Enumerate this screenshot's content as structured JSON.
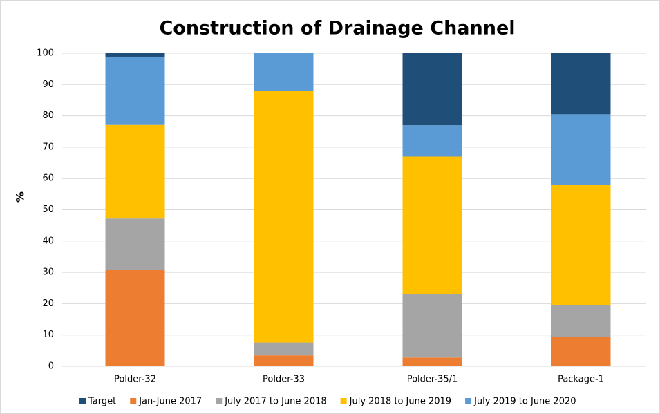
{
  "chart_data": {
    "type": "stacked_bar",
    "title": "Construction of Drainage Channel",
    "y_label": "%",
    "categories": [
      "Polder-32",
      "Polder-33",
      "Polder-35/1",
      "Package-1"
    ],
    "series": [
      {
        "name": "Jan-June 2017",
        "color": "#ed7d31",
        "values": [
          30.7,
          3.5,
          2.8,
          9.3
        ]
      },
      {
        "name": "July 2017 to June 2018",
        "color": "#a5a5a5",
        "values": [
          16.5,
          4.1,
          20.2,
          10.2
        ]
      },
      {
        "name": "July 2018 to June 2019",
        "color": "#ffc000",
        "values": [
          29.9,
          80.4,
          44,
          38.5
        ]
      },
      {
        "name": "July 2019 to June 2020",
        "color": "#5b9bd5",
        "values": [
          21.8,
          12,
          10,
          22.5
        ]
      },
      {
        "name": "Target",
        "color": "#1f4e79",
        "values": [
          1.1,
          0,
          23,
          19.5
        ]
      }
    ],
    "legend_order": [
      4,
      0,
      1,
      2,
      3
    ],
    "ylim": [
      0,
      100
    ],
    "yticks": [
      0,
      10,
      20,
      30,
      40,
      50,
      60,
      70,
      80,
      90,
      100
    ],
    "grid": true
  }
}
